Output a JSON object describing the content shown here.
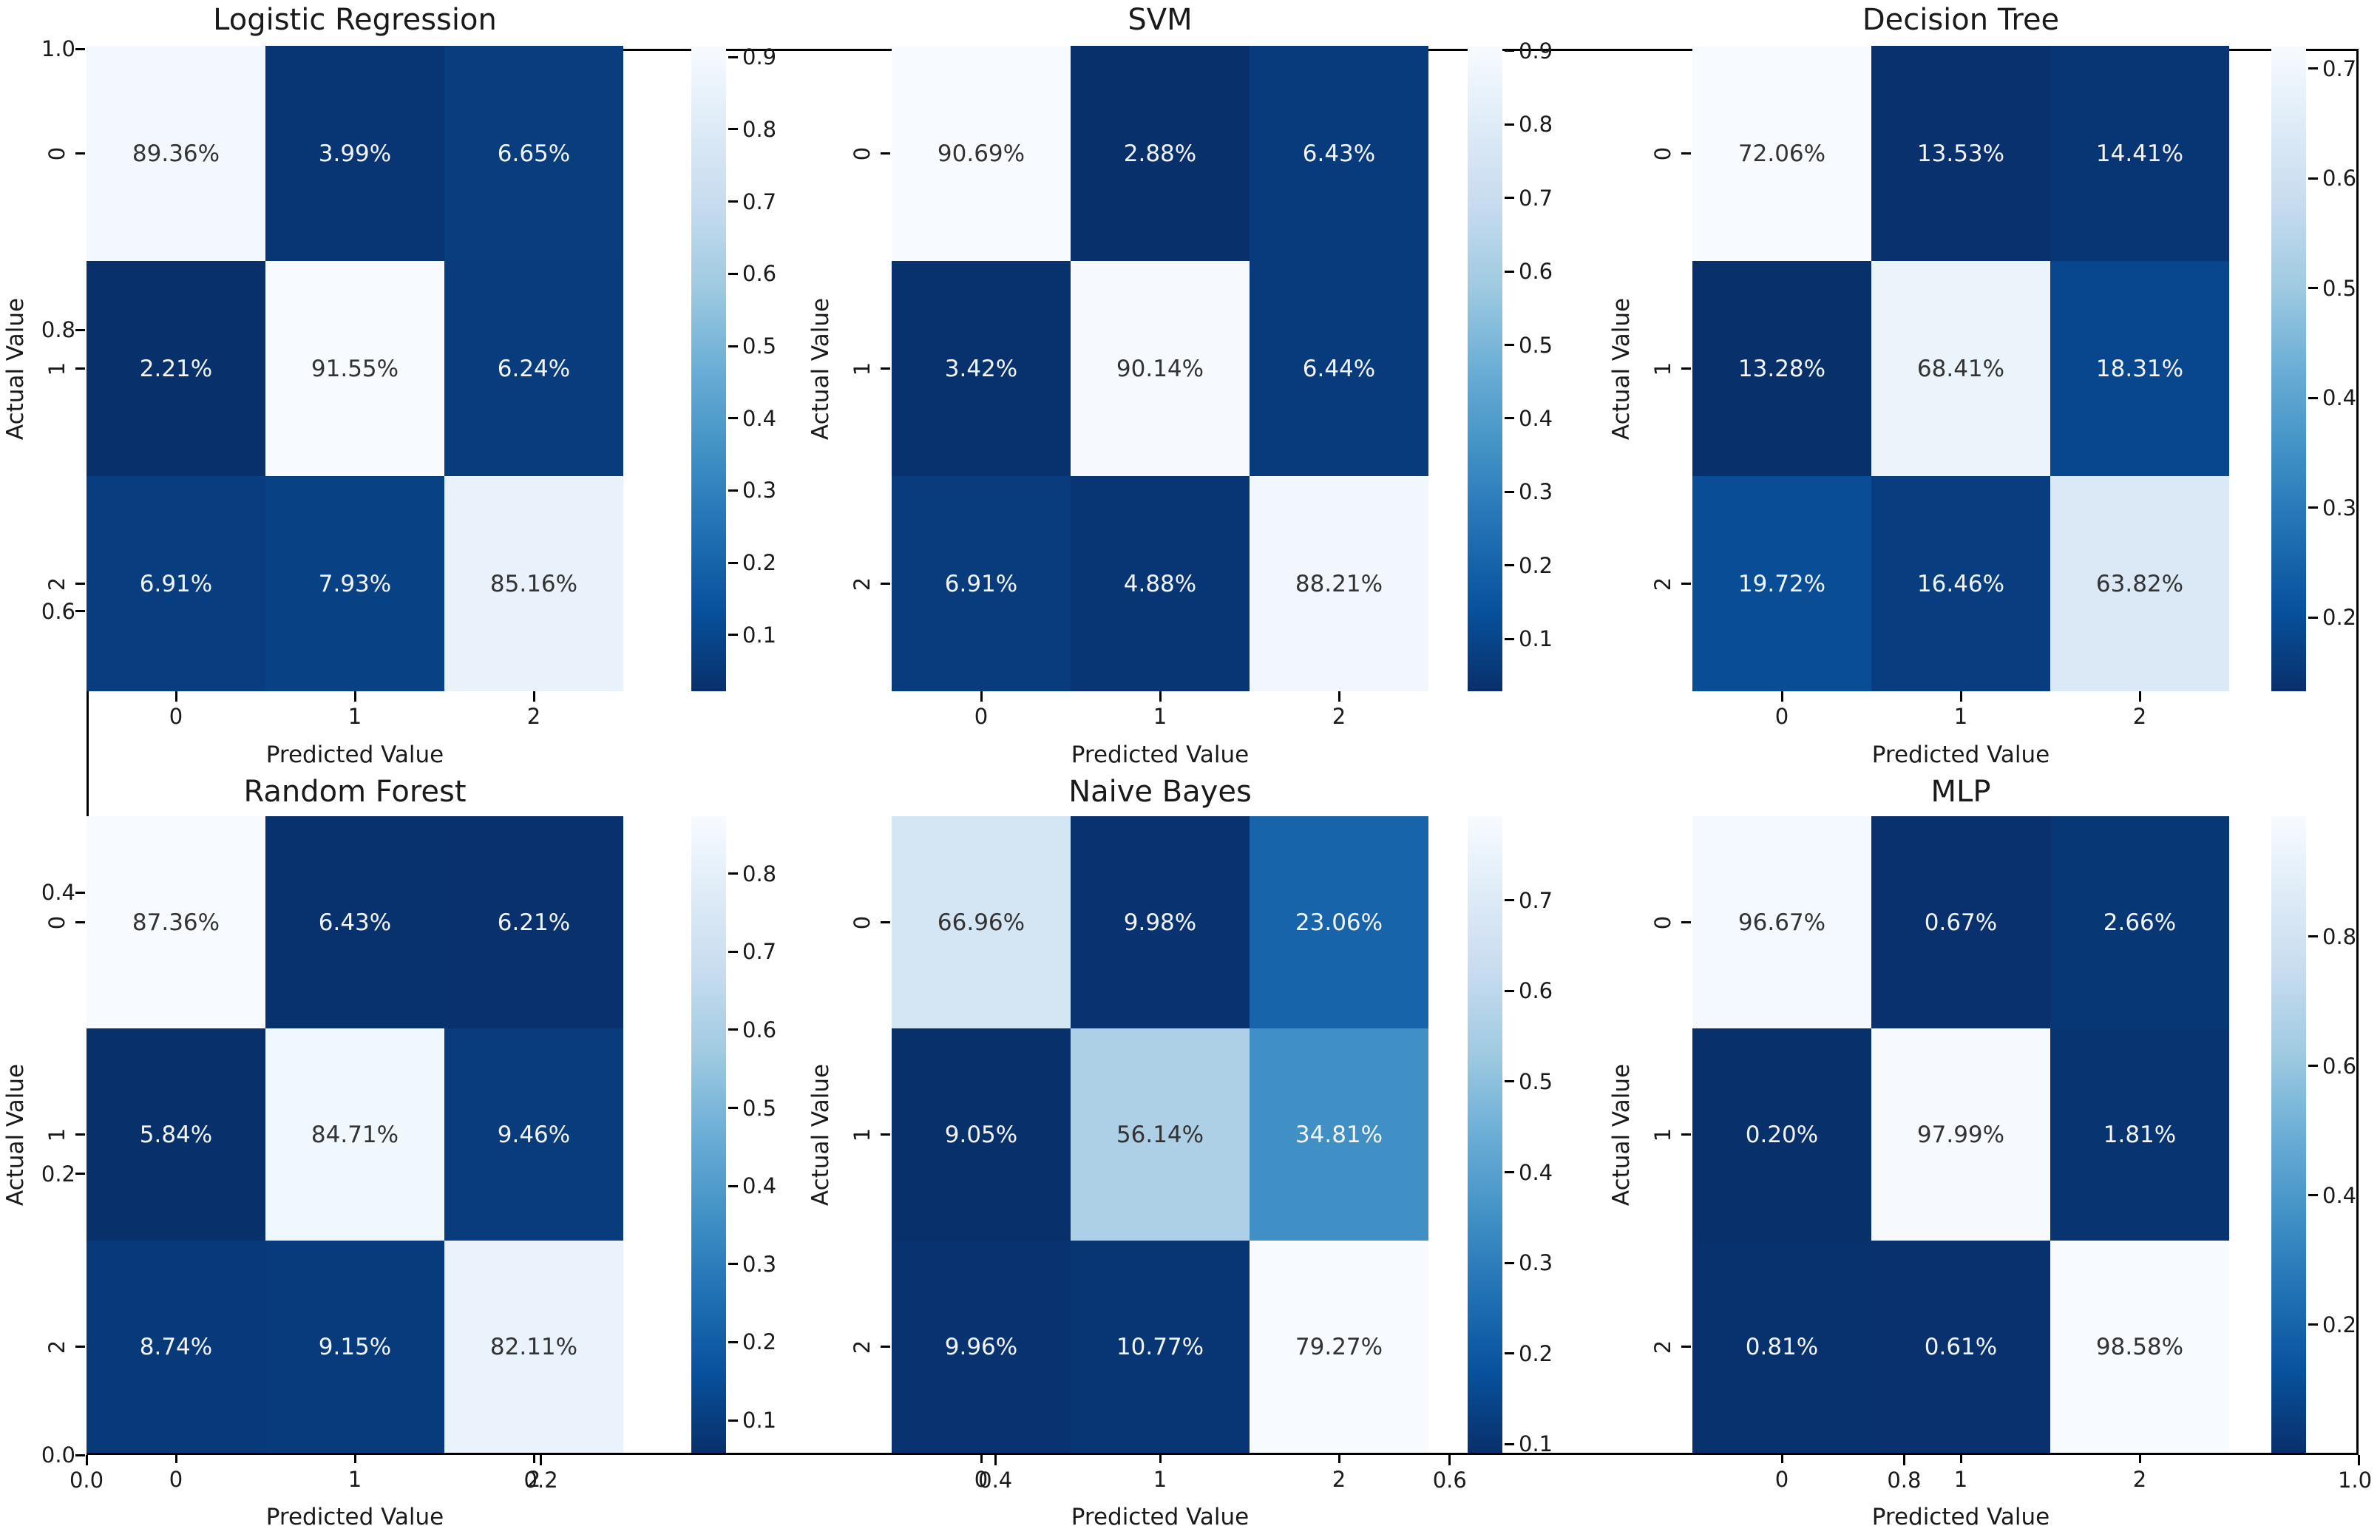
{
  "chart_data": {
    "type": "heatmap",
    "figure_kind": "confusion-matrix-grid",
    "grid": "2 rows x 3 columns, each panel with its own colorbar",
    "xlabel": "Predicted Value",
    "ylabel": "Actual Value",
    "class_tick_labels": [
      "0",
      "1",
      "2"
    ],
    "cell_value_format": "{:.2f}%",
    "colormap": {
      "name": "Blues_r",
      "hex_light_to_dark": [
        "#f7fbff",
        "#deebf7",
        "#c6dbef",
        "#9ecae1",
        "#6baed6",
        "#4292c6",
        "#2171b5",
        "#08519c",
        "#08306b"
      ]
    },
    "annotation_text_colors": {
      "on_light_cell": "#333333",
      "on_dark_cell": "#f2f4f8"
    },
    "background_color": "#ffffff",
    "spine_color": "#000000",
    "outer_axes": {
      "x_ticks": [
        "0.0",
        "0.2",
        "0.4",
        "0.6",
        "0.8",
        "1.0"
      ],
      "y_ticks": [
        "1.0",
        "0.8",
        "0.6",
        "0.4",
        "0.2",
        "0.0"
      ]
    },
    "plots": [
      {
        "title": "Logistic Regression",
        "matrix_percent": [
          [
            89.36,
            3.99,
            6.65
          ],
          [
            2.21,
            91.55,
            6.24
          ],
          [
            6.91,
            7.93,
            85.16
          ]
        ],
        "colorbar_ticks": [
          "0.9",
          "0.8",
          "0.7",
          "0.6",
          "0.5",
          "0.4",
          "0.3",
          "0.2",
          "0.1"
        ]
      },
      {
        "title": "SVM",
        "matrix_percent": [
          [
            90.69,
            2.88,
            6.43
          ],
          [
            3.42,
            90.14,
            6.44
          ],
          [
            6.91,
            4.88,
            88.21
          ]
        ],
        "colorbar_ticks": [
          "0.9",
          "0.8",
          "0.7",
          "0.6",
          "0.5",
          "0.4",
          "0.3",
          "0.2",
          "0.1"
        ]
      },
      {
        "title": "Decision Tree",
        "matrix_percent": [
          [
            72.06,
            13.53,
            14.41
          ],
          [
            13.28,
            68.41,
            18.31
          ],
          [
            19.72,
            16.46,
            63.82
          ]
        ],
        "colorbar_ticks": [
          "0.7",
          "0.6",
          "0.5",
          "0.4",
          "0.3",
          "0.2"
        ]
      },
      {
        "title": "Random Forest",
        "matrix_percent": [
          [
            87.36,
            6.43,
            6.21
          ],
          [
            5.84,
            84.71,
            9.46
          ],
          [
            8.74,
            9.15,
            82.11
          ]
        ],
        "colorbar_ticks": [
          "0.8",
          "0.7",
          "0.6",
          "0.5",
          "0.4",
          "0.3",
          "0.2",
          "0.1"
        ]
      },
      {
        "title": "Naive Bayes",
        "matrix_percent": [
          [
            66.96,
            9.98,
            23.06
          ],
          [
            9.05,
            56.14,
            34.81
          ],
          [
            9.96,
            10.77,
            79.27
          ]
        ],
        "colorbar_ticks": [
          "0.7",
          "0.6",
          "0.5",
          "0.4",
          "0.3",
          "0.2",
          "0.1"
        ]
      },
      {
        "title": "MLP",
        "matrix_percent": [
          [
            96.67,
            0.67,
            2.66
          ],
          [
            0.2,
            97.99,
            1.81
          ],
          [
            0.81,
            0.61,
            98.58
          ]
        ],
        "colorbar_ticks": [
          "0.8",
          "0.6",
          "0.4",
          "0.2"
        ]
      }
    ]
  }
}
